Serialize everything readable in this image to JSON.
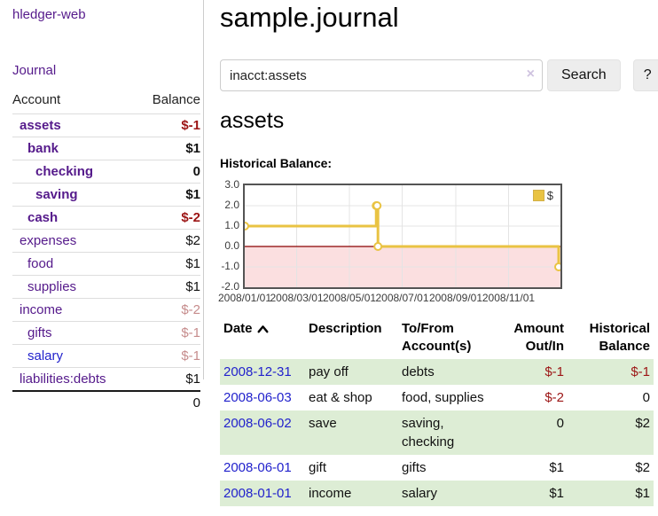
{
  "colors": {
    "link_purple": "#551a8b",
    "link_blue": "#2222cc",
    "negative_strong": "#9c1515",
    "negative_soft": "#c68c8c",
    "row_stripe_green": "#ddedd5",
    "chart_line_gold": "#e9c343",
    "chart_negative_fill": "#fbdfe0",
    "chart_zero_line": "#8b0000"
  },
  "sidebar": {
    "brand": "hledger-web",
    "nav": {
      "journal": "Journal"
    },
    "accounts_table": {
      "headers": [
        "Account",
        "Balance"
      ],
      "rows": [
        {
          "account": "assets",
          "indent": 0,
          "bold": true,
          "link_color": "purple",
          "balance": "$-1",
          "balance_style": "neg-strong"
        },
        {
          "account": "bank",
          "indent": 1,
          "bold": true,
          "link_color": "purple",
          "balance": "$1",
          "balance_style": "pos"
        },
        {
          "account": "checking",
          "indent": 2,
          "bold": true,
          "link_color": "purple",
          "balance": "0",
          "balance_style": "pos"
        },
        {
          "account": "saving",
          "indent": 2,
          "bold": true,
          "link_color": "purple",
          "balance": "$1",
          "balance_style": "pos"
        },
        {
          "account": "cash",
          "indent": 1,
          "bold": true,
          "link_color": "purple",
          "balance": "$-2",
          "balance_style": "neg-strong"
        },
        {
          "account": "expenses",
          "indent": 0,
          "bold": false,
          "link_color": "purple",
          "balance": "$2",
          "balance_style": "pos"
        },
        {
          "account": "food",
          "indent": 1,
          "bold": false,
          "link_color": "purple",
          "balance": "$1",
          "balance_style": "pos"
        },
        {
          "account": "supplies",
          "indent": 1,
          "bold": false,
          "link_color": "purple",
          "balance": "$1",
          "balance_style": "pos"
        },
        {
          "account": "income",
          "indent": 0,
          "bold": false,
          "link_color": "purple",
          "balance": "$-2",
          "balance_style": "neg-soft"
        },
        {
          "account": "gifts",
          "indent": 1,
          "bold": false,
          "link_color": "purple",
          "balance": "$-1",
          "balance_style": "neg-soft"
        },
        {
          "account": "salary",
          "indent": 1,
          "bold": false,
          "link_color": "blue",
          "balance": "$-1",
          "balance_style": "neg-soft"
        },
        {
          "account": "liabilities:debts",
          "indent": 0,
          "bold": false,
          "link_color": "purple",
          "balance": "$1",
          "balance_style": "pos"
        }
      ],
      "total": "0"
    }
  },
  "main": {
    "title": "sample.journal",
    "search": {
      "value": "inacct:assets",
      "clear_icon": "×",
      "button": "Search",
      "help_button": "?"
    },
    "account_heading": "assets",
    "chart_title": "Historical Balance:"
  },
  "chart_data": {
    "type": "line",
    "step": true,
    "title": "Historical Balance:",
    "series": [
      {
        "name": "$",
        "points": [
          [
            "2008-01-01",
            1
          ],
          [
            "2008-06-01",
            2
          ],
          [
            "2008-06-02",
            2
          ],
          [
            "2008-06-03",
            0
          ],
          [
            "2008-12-31",
            -1
          ]
        ]
      }
    ],
    "x_range": [
      "2008-01-01",
      "2008-12-31"
    ],
    "x_ticks": [
      "2008/01/01",
      "2008/03/01",
      "2008/05/01",
      "2008/07/01",
      "2008/09/01",
      "2008/11/01"
    ],
    "y_ticks": [
      "3.0",
      "2.0",
      "1.0",
      "0.0",
      "-1.0",
      "-2.0"
    ],
    "ylim": [
      -2,
      3
    ],
    "grid": true,
    "legend_position": "top-right",
    "legend_label": "$"
  },
  "register": {
    "headers": [
      {
        "lines": [
          "Date"
        ],
        "align": "left",
        "sorted": "ascending"
      },
      {
        "lines": [
          "Description"
        ],
        "align": "left"
      },
      {
        "lines": [
          "To/From",
          "Account(s)"
        ],
        "align": "left"
      },
      {
        "lines": [
          "Amount",
          "Out/In"
        ],
        "align": "right"
      },
      {
        "lines": [
          "Historical",
          "Balance"
        ],
        "align": "right"
      }
    ],
    "rows": [
      {
        "date": "2008-12-31",
        "description": "pay off",
        "accounts": "debts",
        "amount": "$-1",
        "amount_negative": true,
        "balance": "$-1",
        "balance_negative": true
      },
      {
        "date": "2008-06-03",
        "description": "eat & shop",
        "accounts": "food, supplies",
        "amount": "$-2",
        "amount_negative": true,
        "balance": "0",
        "balance_negative": false
      },
      {
        "date": "2008-06-02",
        "description": "save",
        "accounts": "saving, checking",
        "amount": "0",
        "amount_negative": false,
        "balance": "$2",
        "balance_negative": false
      },
      {
        "date": "2008-06-01",
        "description": "gift",
        "accounts": "gifts",
        "amount": "$1",
        "amount_negative": false,
        "balance": "$2",
        "balance_negative": false
      },
      {
        "date": "2008-01-01",
        "description": "income",
        "accounts": "salary",
        "amount": "$1",
        "amount_negative": false,
        "balance": "$1",
        "balance_negative": false
      }
    ]
  }
}
